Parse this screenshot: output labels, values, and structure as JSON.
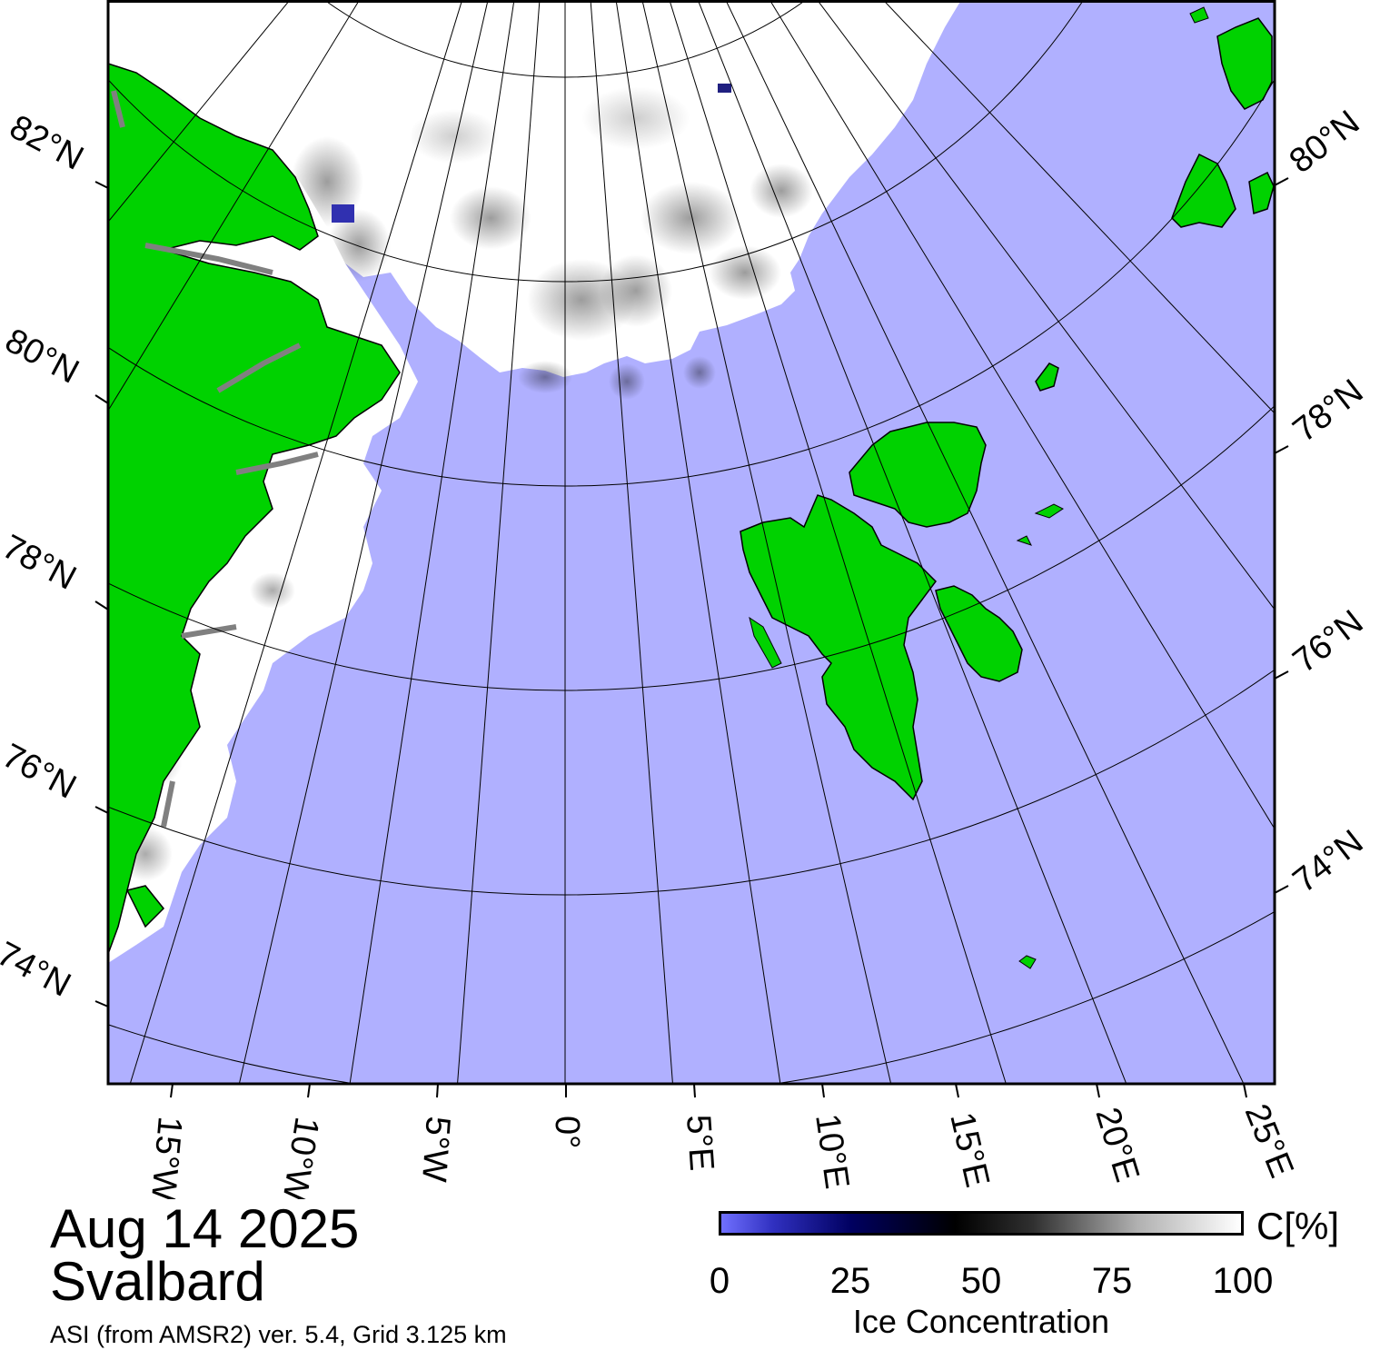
{
  "map": {
    "date": "Aug 14 2025",
    "region": "Svalbard",
    "source": "ASI (from AMSR2) ver. 5.4,  Grid 3.125 km",
    "colors": {
      "ocean": "#b0b0ff",
      "land": "#00d200",
      "coast_gray": "#808080",
      "ice_full": "#ffffff",
      "graticule": "#000000"
    },
    "latitudes_left": [
      "82°N",
      "80°N",
      "78°N",
      "76°N",
      "74°N"
    ],
    "latitudes_right": [
      "80°N",
      "78°N",
      "76°N",
      "74°N"
    ],
    "longitudes_bottom": [
      "15°W",
      "10°W",
      "5°W",
      "0°",
      "5°E",
      "10°E",
      "15°E",
      "20°E",
      "25°E"
    ]
  },
  "colorbar": {
    "unit": "C[%]",
    "ticks": [
      "0",
      "25",
      "50",
      "75",
      "100"
    ],
    "tick_values": [
      0,
      25,
      50,
      75,
      100
    ],
    "title": "Ice Concentration",
    "gradient_stops": [
      {
        "value": 0,
        "color": "#7070ff"
      },
      {
        "value": 10,
        "color": "#3030c0"
      },
      {
        "value": 25,
        "color": "#000060"
      },
      {
        "value": 45,
        "color": "#000000"
      },
      {
        "value": 60,
        "color": "#303030"
      },
      {
        "value": 80,
        "color": "#b0b0b0"
      },
      {
        "value": 100,
        "color": "#ffffff"
      }
    ]
  }
}
